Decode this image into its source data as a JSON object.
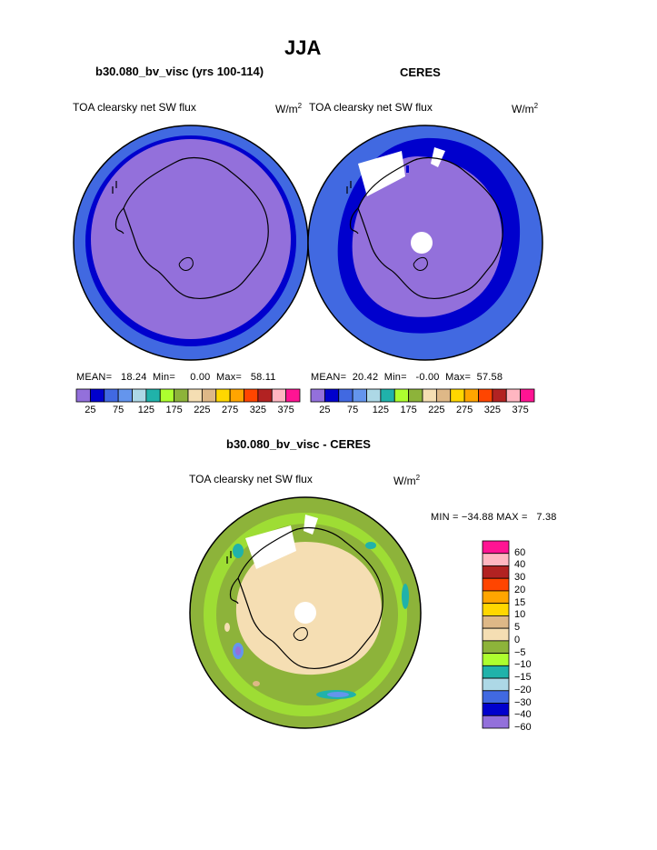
{
  "figure": {
    "title": "JJA"
  },
  "panels": [
    {
      "case_label": "b30.080_bv_visc (yrs 100-114)",
      "variable": "TOA clearsky net SW flux",
      "units_base": "W/m",
      "units_exp": "2",
      "stats": {
        "mean_label": "MEAN=",
        "mean": "18.24",
        "min_label": "Min=",
        "min": "0.00",
        "max_label": "Max=",
        "max": "58.11"
      }
    },
    {
      "case_label": "CERES",
      "variable": "TOA clearsky net SW flux",
      "units_base": "W/m",
      "units_exp": "2",
      "stats": {
        "mean_label": "MEAN=",
        "mean": "20.42",
        "min_label": "Min=",
        "min": "-0.00",
        "max_label": "Max=",
        "max": "57.58"
      }
    }
  ],
  "difference_panel": {
    "case_label": "b30.080_bv_visc - CERES",
    "variable": "TOA clearsky net SW flux",
    "units_base": "W/m",
    "units_exp": "2",
    "minmax_text": "MIN = −34.88 MAX =   7.38"
  },
  "horizontal_colorbar": {
    "colors": [
      "#9370db",
      "#0000cd",
      "#4169e1",
      "#6495ed",
      "#add8e6",
      "#20b2aa",
      "#adff2f",
      "#8db33a",
      "#f5deb3",
      "#deb887",
      "#ffd700",
      "#ffa500",
      "#ff4500",
      "#b22222",
      "#ffb6c1",
      "#ff1493"
    ],
    "tick_labels": [
      "25",
      "75",
      "125",
      "175",
      "225",
      "275",
      "325",
      "375"
    ]
  },
  "vertical_colorbar": {
    "colors_top_to_bottom": [
      "#ff1493",
      "#ffb6c1",
      "#b22222",
      "#ff4500",
      "#ffa500",
      "#ffd700",
      "#deb887",
      "#f5deb3",
      "#8db33a",
      "#adff2f",
      "#20b2aa",
      "#add8e6",
      "#4169e1",
      "#0000cd",
      "#9370db"
    ],
    "labels_top_to_bottom": [
      "60",
      "40",
      "30",
      "20",
      "15",
      "10",
      "5",
      "0",
      "−5",
      "−10",
      "−15",
      "−20",
      "−30",
      "−40",
      "−60"
    ]
  }
}
